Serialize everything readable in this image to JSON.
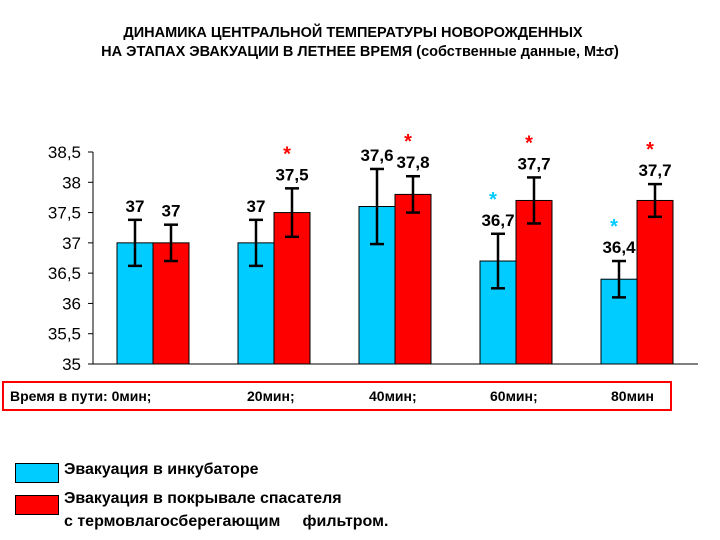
{
  "title_line1": "ДИНАМИКА ЦЕНТРАЛЬНОЙ ТЕМПЕРАТУРЫ НОВОРОЖДЕННЫХ",
  "title_line2": "НА ЭТАПАХ ЭВАКУАЦИИ В ЛЕТНЕЕ ВРЕМЯ (собственные данные, M±σ)",
  "time_row": {
    "prefix": "Время в пути: 0мин;",
    "t20": "20мин;",
    "t40": "40мин;",
    "t60": "60мин;",
    "t80": "80мин"
  },
  "legend": {
    "incubator": "Эвакуация в инкубаторе",
    "blanket_line1": "Эвакуация в покрывале спасателя",
    "blanket_line2": "с термовлагосберегающим     фильтром."
  },
  "chart_data": {
    "type": "bar",
    "categories": [
      "0мин",
      "20мин",
      "40мин",
      "60мин",
      "80мин"
    ],
    "ylim": [
      35,
      38.5
    ],
    "yticks": [
      "35",
      "35,5",
      "36",
      "36,5",
      "37",
      "37,5",
      "38",
      "38,5"
    ],
    "ytick_values": [
      35,
      35.5,
      36,
      36.5,
      37,
      37.5,
      38,
      38.5
    ],
    "grid": false,
    "series": [
      {
        "name": "Эвакуация в инкубаторе",
        "color": "#00ccff",
        "values": [
          37.0,
          37.0,
          37.6,
          36.7,
          36.4
        ],
        "errors": [
          0.38,
          0.38,
          0.62,
          0.45,
          0.3
        ],
        "labels": [
          "37",
          "37",
          "37,6",
          "36,7",
          "36,4"
        ],
        "stars": [
          false,
          false,
          false,
          true,
          true
        ]
      },
      {
        "name": "Эвакуация в покрывале спасателя с термовлагосберегающим фильтром.",
        "color": "#ff0000",
        "values": [
          37.0,
          37.5,
          37.8,
          37.7,
          37.7
        ],
        "errors": [
          0.3,
          0.4,
          0.3,
          0.38,
          0.27
        ],
        "labels": [
          "37",
          "37,5",
          "37,8",
          "37,7",
          "37,7"
        ],
        "stars": [
          false,
          true,
          true,
          true,
          true
        ]
      }
    ],
    "star_symbol": "*"
  }
}
